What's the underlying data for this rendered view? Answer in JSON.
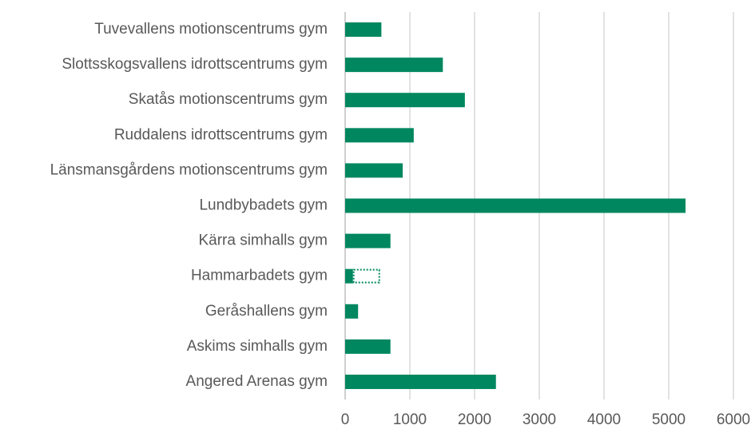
{
  "chart_data": {
    "type": "bar",
    "orientation": "horizontal",
    "stacked": true,
    "categories": [
      "Tuvevallens motionscentrums gym",
      "Slottsskogsvallens idrottscentrums gym",
      "Skatås motionscentrums gym",
      "Ruddalens idrottscentrums gym",
      "Länsmansgårdens motionscentrums gym",
      "Lundbybadets gym",
      "Kärra simhalls gym",
      "Hammarbadets gym",
      "Geråshallens gym",
      "Askims simhalls gym",
      "Angered Arenas gym"
    ],
    "series": [
      {
        "color": "#00875f",
        "style": "solid",
        "values": [
          560,
          1510,
          1850,
          1060,
          890,
          5260,
          700,
          120,
          200,
          700,
          2330
        ]
      },
      {
        "color": "#00875f",
        "style": "dotted",
        "values": [
          null,
          null,
          null,
          null,
          null,
          null,
          null,
          420,
          null,
          null,
          null
        ]
      }
    ],
    "xlim": [
      0,
      6000
    ],
    "xticks": [
      0,
      1000,
      2000,
      3000,
      4000,
      5000,
      6000
    ],
    "grid": true
  }
}
